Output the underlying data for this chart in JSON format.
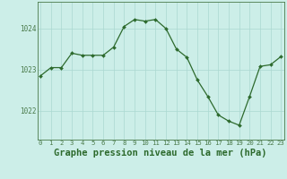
{
  "x": [
    0,
    1,
    2,
    3,
    4,
    5,
    6,
    7,
    8,
    9,
    10,
    11,
    12,
    13,
    14,
    15,
    16,
    17,
    18,
    19,
    20,
    21,
    22,
    23
  ],
  "y": [
    1022.85,
    1023.05,
    1023.05,
    1023.4,
    1023.35,
    1023.35,
    1023.35,
    1023.55,
    1024.05,
    1024.22,
    1024.18,
    1024.22,
    1024.0,
    1023.5,
    1023.3,
    1022.75,
    1022.35,
    1021.9,
    1021.75,
    1021.65,
    1022.35,
    1023.08,
    1023.12,
    1023.32
  ],
  "line_color": "#2d6a2d",
  "marker": "D",
  "marker_size": 2.0,
  "bg_color": "#cceee8",
  "grid_color": "#aad8d0",
  "axis_color": "#4a7a4a",
  "label_color": "#2d6a2d",
  "title": "Graphe pression niveau de la mer (hPa)",
  "title_fontsize": 7.5,
  "yticks": [
    1022,
    1023,
    1024
  ],
  "ylim": [
    1021.3,
    1024.65
  ],
  "xlim": [
    -0.3,
    23.3
  ],
  "xtick_fontsize": 5.2,
  "ytick_fontsize": 5.5,
  "linewidth": 0.9
}
